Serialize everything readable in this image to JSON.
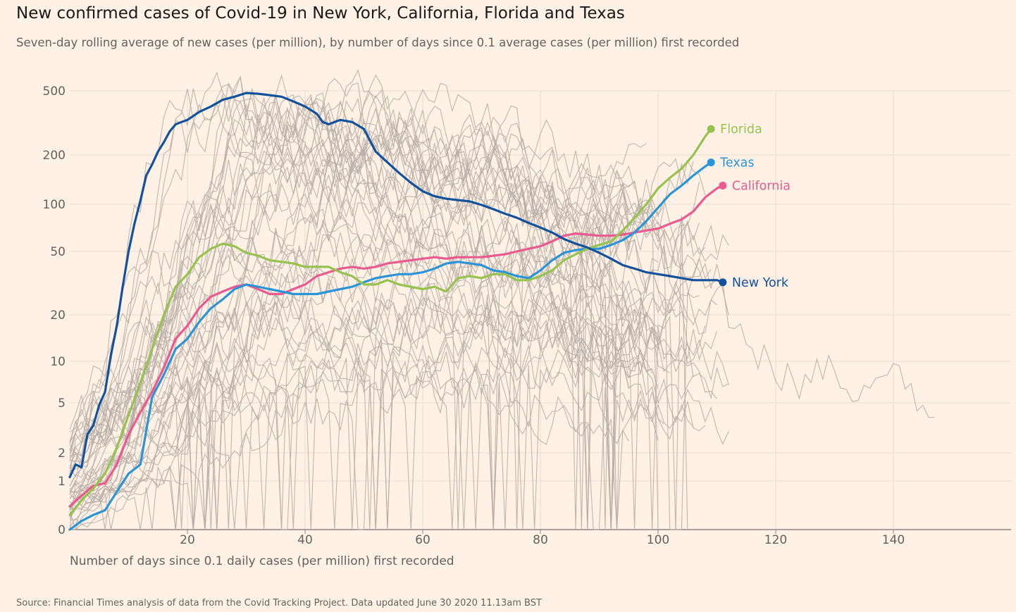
{
  "title": "New confirmed cases of Covid-19 in New York, California, Florida and Texas",
  "subtitle": "Seven-day rolling average of new cases (per million), by number of days since 0.1 average cases (per million) first recorded",
  "source": "Source: Financial Times analysis of data from the Covid Tracking Project. Data updated June 30 2020 11.13am BST",
  "colors": {
    "background": "#fff1e5",
    "grid": "#e8dcd3",
    "axis": "#8f8580",
    "other_states": "#b5aba4",
    "new_york": "#12519c",
    "florida": "#96c250",
    "texas": "#2b94d6",
    "california": "#ea5a8e"
  },
  "chart_data": {
    "type": "line",
    "title": "New confirmed cases of Covid-19 in New York, California, Florida and Texas",
    "subtitle": "Seven-day rolling average of new cases (per million), by number of days since 0.1 average cases (per million) first recorded",
    "xlabel": "Number of days since 0.1 daily cases (per million) first recorded",
    "ylabel": "",
    "xlim": [
      0,
      160
    ],
    "ylim": [
      0,
      500
    ],
    "y_scale": "log (symmetric, 0 at baseline)",
    "x_ticks": [
      "20",
      "40",
      "60",
      "80",
      "100",
      "120",
      "140"
    ],
    "y_ticks": [
      "500",
      "200",
      "100",
      "50",
      "20",
      "10",
      "5",
      "2",
      "1",
      "0"
    ],
    "grid": true,
    "legend": "direct labels at line ends",
    "series": [
      {
        "name": "New York",
        "color": "#12519c",
        "x": [
          0,
          1,
          2,
          3,
          4,
          5,
          6,
          7,
          8,
          9,
          10,
          11,
          12,
          13,
          14,
          15,
          16,
          17,
          18,
          19,
          20,
          22,
          24,
          26,
          28,
          30,
          32,
          34,
          36,
          38,
          40,
          42,
          43,
          44,
          45,
          46,
          48,
          50,
          52,
          54,
          56,
          58,
          60,
          62,
          64,
          66,
          68,
          70,
          72,
          74,
          76,
          78,
          80,
          82,
          84,
          86,
          88,
          90,
          92,
          94,
          96,
          98,
          100,
          102,
          104,
          106,
          108,
          110,
          111
        ],
        "y": [
          1.1,
          1.5,
          1.4,
          2.8,
          3.3,
          4.8,
          6.0,
          11,
          17,
          30,
          50,
          75,
          105,
          150,
          175,
          210,
          240,
          280,
          310,
          320,
          330,
          370,
          400,
          440,
          460,
          485,
          480,
          470,
          460,
          430,
          400,
          360,
          320,
          310,
          320,
          330,
          320,
          290,
          210,
          180,
          155,
          135,
          120,
          112,
          108,
          106,
          104,
          99,
          93,
          87,
          82,
          76,
          71,
          66,
          60,
          56,
          53,
          49,
          45,
          41,
          39,
          37,
          36,
          35,
          34,
          33,
          33,
          33,
          32
        ]
      },
      {
        "name": "Florida",
        "color": "#96c250",
        "x": [
          0,
          2,
          4,
          6,
          8,
          10,
          12,
          14,
          16,
          18,
          20,
          22,
          24,
          26,
          28,
          30,
          32,
          34,
          36,
          38,
          40,
          42,
          44,
          46,
          48,
          50,
          52,
          54,
          56,
          58,
          60,
          62,
          64,
          66,
          68,
          70,
          72,
          74,
          76,
          78,
          80,
          82,
          84,
          86,
          88,
          90,
          92,
          94,
          96,
          98,
          100,
          102,
          104,
          106,
          108,
          109
        ],
        "y": [
          0.2,
          0.4,
          0.7,
          1.2,
          2.2,
          4.0,
          7.0,
          12,
          20,
          30,
          36,
          46,
          52,
          56,
          54,
          49,
          47,
          44,
          43,
          42,
          40,
          40,
          40,
          37,
          35,
          31,
          31,
          33,
          31,
          30,
          29,
          30,
          28,
          34,
          35,
          34,
          36,
          36,
          33,
          33,
          35,
          38,
          44,
          48,
          52,
          55,
          58,
          68,
          82,
          100,
          125,
          145,
          165,
          200,
          260,
          290
        ]
      },
      {
        "name": "Texas",
        "color": "#2b94d6",
        "x": [
          0,
          2,
          4,
          6,
          8,
          10,
          12,
          14,
          16,
          18,
          20,
          22,
          24,
          26,
          28,
          30,
          32,
          34,
          36,
          38,
          40,
          42,
          44,
          46,
          48,
          50,
          52,
          54,
          56,
          58,
          60,
          62,
          64,
          66,
          68,
          70,
          72,
          74,
          76,
          78,
          80,
          82,
          84,
          86,
          88,
          90,
          92,
          94,
          96,
          98,
          100,
          102,
          104,
          106,
          108,
          109
        ],
        "y": [
          0.1,
          0.15,
          0.2,
          0.25,
          0.6,
          1.2,
          1.5,
          5.5,
          8.0,
          12,
          14,
          18,
          22,
          25,
          29,
          31,
          30,
          29,
          28,
          27,
          27,
          27,
          28,
          29,
          30,
          32,
          34,
          35,
          36,
          36,
          37,
          39,
          42,
          43,
          42,
          41,
          38,
          37,
          35,
          34,
          38,
          44,
          49,
          51,
          52,
          52,
          55,
          59,
          66,
          78,
          95,
          115,
          130,
          150,
          170,
          180
        ]
      },
      {
        "name": "California",
        "color": "#ea5a8e",
        "x": [
          0,
          2,
          4,
          6,
          8,
          10,
          12,
          14,
          16,
          18,
          20,
          22,
          24,
          26,
          28,
          30,
          32,
          34,
          36,
          38,
          40,
          42,
          44,
          46,
          48,
          50,
          52,
          54,
          56,
          58,
          60,
          62,
          64,
          66,
          68,
          70,
          72,
          74,
          76,
          78,
          80,
          82,
          84,
          86,
          88,
          90,
          92,
          94,
          96,
          98,
          100,
          102,
          104,
          106,
          108,
          110,
          111
        ],
        "y": [
          0.3,
          0.5,
          0.8,
          0.9,
          1.5,
          2.8,
          4.2,
          6.0,
          9.0,
          14,
          17,
          22,
          26,
          28,
          30,
          31,
          29,
          27,
          27,
          29,
          31,
          35,
          37,
          39,
          40,
          39,
          40,
          42,
          43,
          44,
          45,
          46,
          45,
          46,
          46,
          46,
          47,
          48,
          50,
          52,
          54,
          58,
          63,
          65,
          64,
          63,
          63,
          64,
          66,
          68,
          70,
          75,
          80,
          90,
          110,
          125,
          130
        ]
      }
    ],
    "other_series_count": 46,
    "end_labels": [
      {
        "name": "Florida",
        "x": 109,
        "y": 290
      },
      {
        "name": "Texas",
        "x": 109,
        "y": 180
      },
      {
        "name": "California",
        "x": 111,
        "y": 130
      },
      {
        "name": "New York",
        "x": 111,
        "y": 32
      }
    ]
  }
}
